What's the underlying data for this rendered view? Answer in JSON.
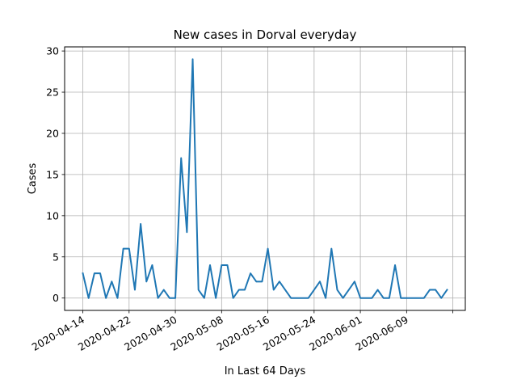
{
  "chart_data": {
    "type": "line",
    "title": "New cases in Dorval everyday",
    "xlabel": "In Last 64 Days",
    "ylabel": "Cases",
    "grid": true,
    "series_color": "#1f77b4",
    "x_tick_labels": [
      "2020-04-14",
      "2020-04-22",
      "2020-04-30",
      "2020-05-08",
      "2020-05-16",
      "2020-05-24",
      "2020-06-01",
      "2020-06-09",
      ""
    ],
    "y_ticks": [
      0,
      5,
      10,
      15,
      20,
      25,
      30
    ],
    "ylim": [
      -1.5,
      30.5
    ],
    "x_start_date": "2020-04-14",
    "series": [
      {
        "values": [
          3,
          0,
          3,
          3,
          0,
          2,
          0,
          6,
          6,
          1,
          9,
          2,
          4,
          0,
          1,
          0,
          0,
          17,
          8,
          29,
          1,
          0,
          4,
          0,
          4,
          4,
          0,
          1,
          1,
          3,
          2,
          2,
          6,
          1,
          2,
          1,
          0,
          0,
          0,
          0,
          1,
          2,
          0,
          6,
          1,
          0,
          1,
          2,
          0,
          0,
          0,
          1,
          0,
          0,
          4,
          0,
          0,
          0,
          0,
          0,
          1,
          1,
          0,
          1
        ]
      }
    ]
  }
}
